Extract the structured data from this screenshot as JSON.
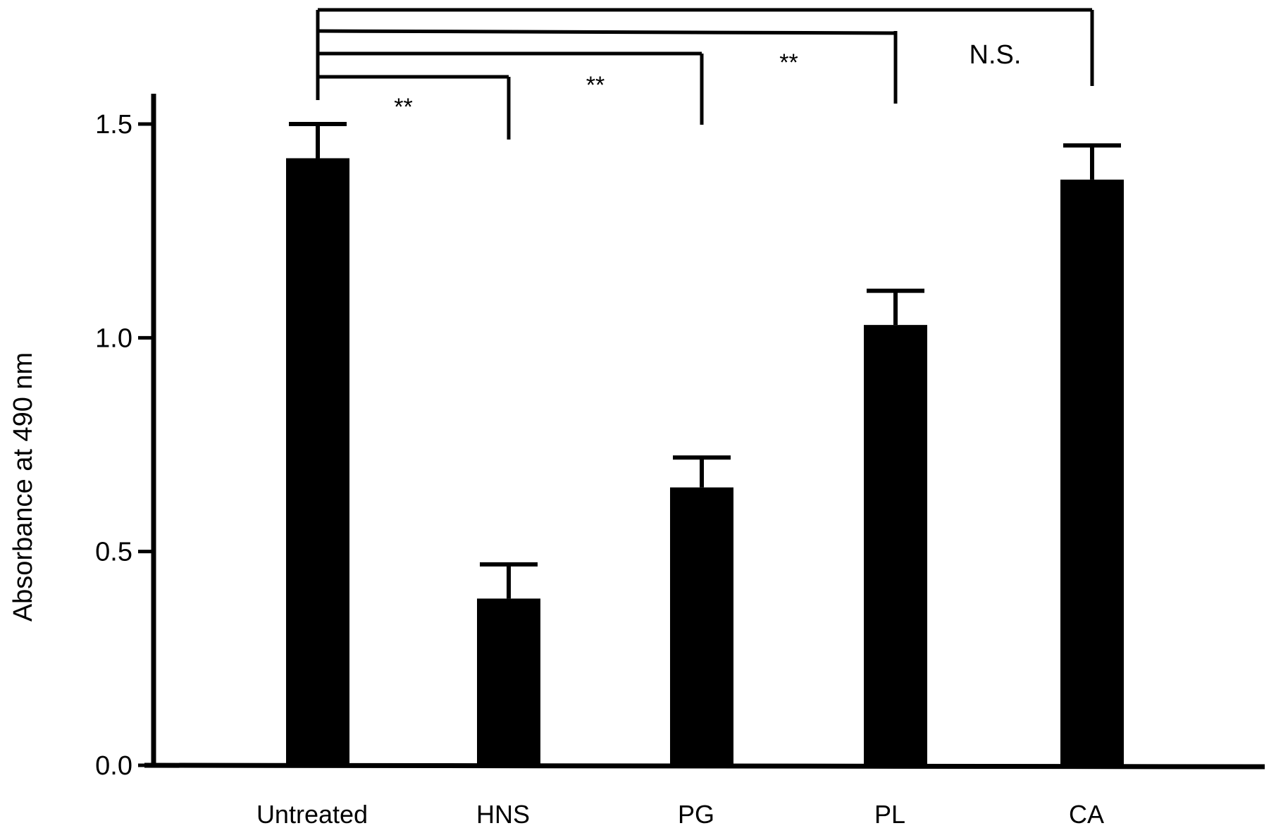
{
  "chart_data": {
    "type": "bar",
    "title": "",
    "xlabel": "",
    "ylabel": "Absorbance at 490 nm",
    "ylim": [
      0.0,
      1.5
    ],
    "yticks": [
      "0.0",
      "0.5",
      "1.0",
      "1.5"
    ],
    "grid": false,
    "legend": "none",
    "categories": [
      "Untreated",
      "HNS",
      "PG",
      "PL",
      "CA"
    ],
    "series": [
      {
        "values": [
          1.42,
          0.39,
          0.65,
          1.03,
          1.37
        ],
        "errors": [
          0.08,
          0.08,
          0.07,
          0.08,
          0.08
        ],
        "color": "#000000"
      }
    ],
    "significance": [
      {
        "from": "Untreated",
        "to": "HNS",
        "label": "**"
      },
      {
        "from": "Untreated",
        "to": "PG",
        "label": "**"
      },
      {
        "from": "Untreated",
        "to": "PL",
        "label": "**"
      },
      {
        "from": "Untreated",
        "to": "CA",
        "label": "N.S."
      }
    ]
  }
}
